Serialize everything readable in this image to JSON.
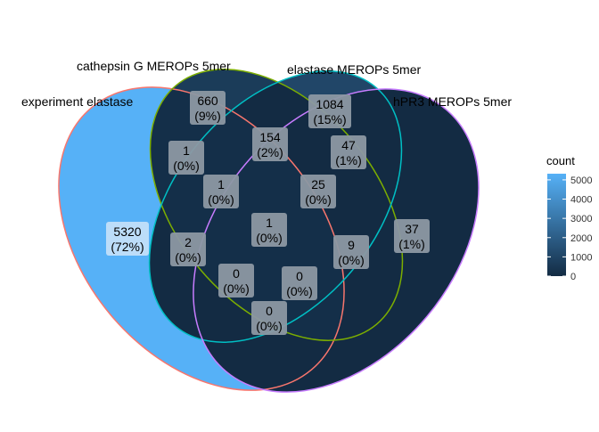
{
  "chart_data": {
    "type": "venn",
    "sets": [
      {
        "name": "experiment elastase",
        "outline_color": "#F8766D"
      },
      {
        "name": "cathepsin G MEROPs 5mer",
        "outline_color": "#7CAE00"
      },
      {
        "name": "elastase MEROPs 5mer",
        "outline_color": "#00BFC4"
      },
      {
        "name": "hPR3 MEROPs 5mer",
        "outline_color": "#C77CFF"
      }
    ],
    "regions": [
      {
        "sets": [
          "experiment elastase"
        ],
        "count": 5320,
        "label": "5320",
        "percent": "(72%)"
      },
      {
        "sets": [
          "cathepsin G MEROPs 5mer"
        ],
        "count": 660,
        "label": "660",
        "percent": "(9%)"
      },
      {
        "sets": [
          "elastase MEROPs 5mer"
        ],
        "count": 1084,
        "label": "1084",
        "percent": "(15%)"
      },
      {
        "sets": [
          "hPR3 MEROPs 5mer"
        ],
        "count": 37,
        "label": "37",
        "percent": "(1%)"
      },
      {
        "sets": [
          "experiment elastase",
          "cathepsin G MEROPs 5mer"
        ],
        "count": 1,
        "label": "1",
        "percent": "(0%)"
      },
      {
        "sets": [
          "cathepsin G MEROPs 5mer",
          "elastase MEROPs 5mer"
        ],
        "count": 154,
        "label": "154",
        "percent": "(2%)"
      },
      {
        "sets": [
          "elastase MEROPs 5mer",
          "hPR3 MEROPs 5mer"
        ],
        "count": 47,
        "label": "47",
        "percent": "(1%)"
      },
      {
        "sets": [
          "experiment elastase",
          "cathepsin G MEROPs 5mer",
          "elastase MEROPs 5mer"
        ],
        "count": 1,
        "label": "1",
        "percent": "(0%)"
      },
      {
        "sets": [
          "cathepsin G MEROPs 5mer",
          "elastase MEROPs 5mer",
          "hPR3 MEROPs 5mer"
        ],
        "count": 25,
        "label": "25",
        "percent": "(0%)"
      },
      {
        "sets": [
          "experiment elastase",
          "cathepsin G MEROPs 5mer",
          "elastase MEROPs 5mer",
          "hPR3 MEROPs 5mer"
        ],
        "count": 1,
        "label": "1",
        "percent": "(0%)"
      },
      {
        "sets": [
          "experiment elastase",
          "elastase MEROPs 5mer"
        ],
        "count": 2,
        "label": "2",
        "percent": "(0%)"
      },
      {
        "sets": [
          "cathepsin G MEROPs 5mer",
          "hPR3 MEROPs 5mer"
        ],
        "count": 9,
        "label": "9",
        "percent": "(0%)"
      },
      {
        "sets": [
          "experiment elastase",
          "elastase MEROPs 5mer",
          "hPR3 MEROPs 5mer"
        ],
        "count": 0,
        "label": "0",
        "percent": "(0%)"
      },
      {
        "sets": [
          "experiment elastase",
          "cathepsin G MEROPs 5mer",
          "hPR3 MEROPs 5mer"
        ],
        "count": 0,
        "label": "0",
        "percent": "(0%)"
      },
      {
        "sets": [
          "experiment elastase",
          "hPR3 MEROPs 5mer"
        ],
        "count": 0,
        "label": "0",
        "percent": "(0%)"
      }
    ],
    "legend": {
      "title": "count",
      "position": "right",
      "ticks": [
        "5000",
        "4000",
        "3000",
        "2000",
        "1000",
        "0"
      ],
      "tick_values": [
        5000,
        4000,
        3000,
        2000,
        1000,
        0
      ],
      "range": [
        0,
        5320
      ],
      "low_color": "#132B43",
      "high_color": "#56B1F7"
    },
    "grid": false
  }
}
